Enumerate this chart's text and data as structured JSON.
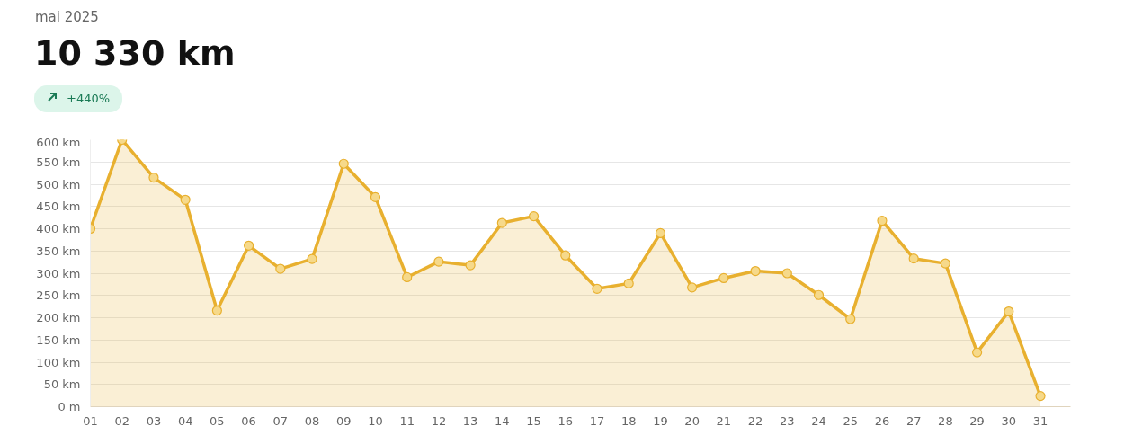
{
  "chart_data": {
    "type": "area",
    "subtitle": "mai 2025",
    "title": "10 330 km",
    "annotations": [
      "+440%"
    ],
    "categories": [
      "01",
      "02",
      "03",
      "04",
      "05",
      "06",
      "07",
      "08",
      "09",
      "10",
      "11",
      "12",
      "13",
      "14",
      "15",
      "16",
      "17",
      "18",
      "19",
      "20",
      "21",
      "22",
      "23",
      "24",
      "25",
      "26",
      "27",
      "28",
      "29",
      "30",
      "31"
    ],
    "series": [
      {
        "color": "#e8b02f",
        "values": [
          400,
          600,
          515,
          465,
          216,
          362,
          310,
          332,
          546,
          471,
          291,
          326,
          318,
          413,
          428,
          340,
          265,
          277,
          390,
          268,
          289,
          305,
          300,
          251,
          197,
          418,
          333,
          322,
          122,
          214,
          24
        ]
      }
    ],
    "ylim": [
      0,
      600
    ],
    "yticks": [
      {
        "value": 0,
        "label": "0 m"
      },
      {
        "value": 50,
        "label": "50 km"
      },
      {
        "value": 100,
        "label": "100 km"
      },
      {
        "value": 150,
        "label": "150 km"
      },
      {
        "value": 200,
        "label": "200 km"
      },
      {
        "value": 250,
        "label": "250 km"
      },
      {
        "value": 300,
        "label": "300 km"
      },
      {
        "value": 350,
        "label": "350 km"
      },
      {
        "value": 400,
        "label": "400 km"
      },
      {
        "value": 450,
        "label": "450 km"
      },
      {
        "value": 500,
        "label": "500 km"
      },
      {
        "value": 550,
        "label": "550 km"
      },
      {
        "value": 600,
        "label": "600 km"
      }
    ],
    "grid": "y",
    "marker": "circle"
  }
}
